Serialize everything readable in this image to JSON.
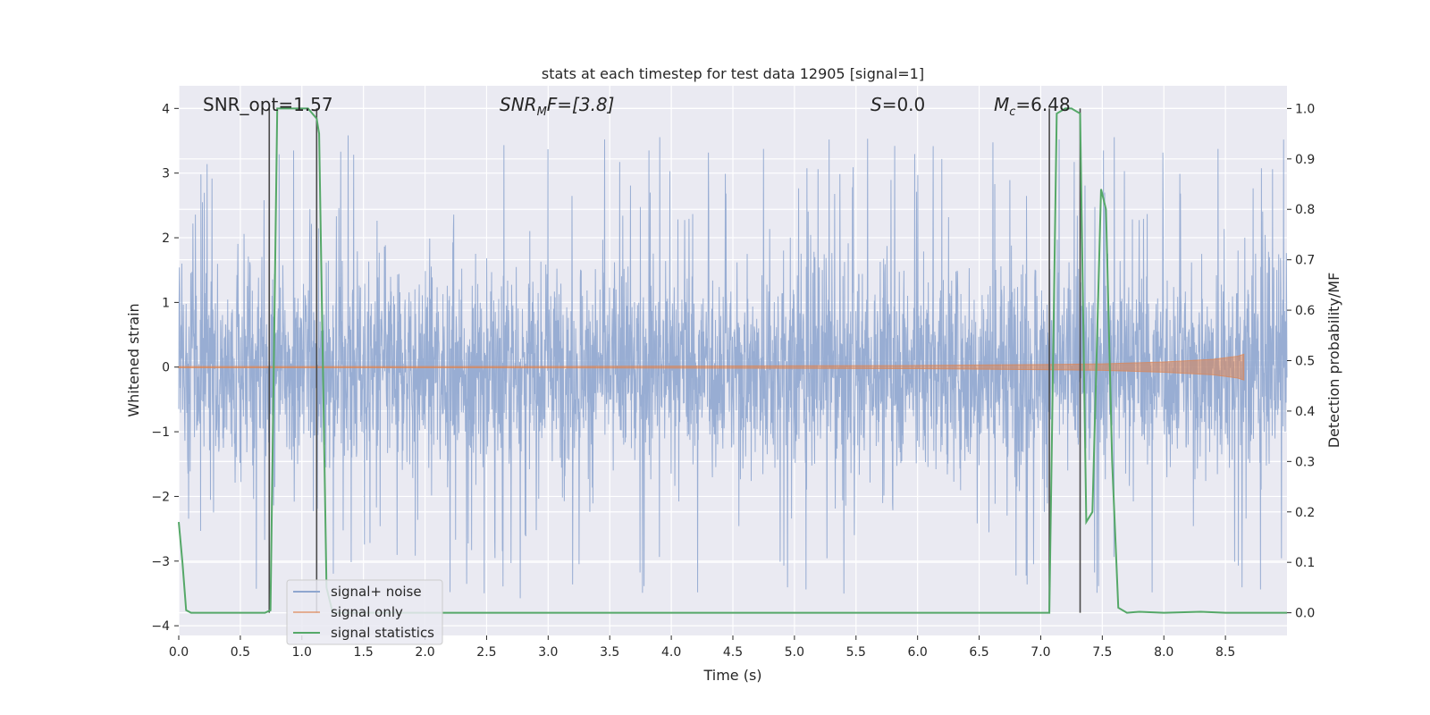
{
  "chart_data": {
    "type": "line",
    "title": "stats at each timestep for test data 12905 [signal=1]",
    "xlabel": "Time (s)",
    "ylabel_left": "Whitened strain",
    "ylabel_right": "Detection probability/MF",
    "xlim": [
      0.0,
      9.0
    ],
    "ylim_left": [
      -4.15,
      4.35
    ],
    "ylim_right": [
      -0.045,
      1.045
    ],
    "x_ticks": [
      "0.0",
      "0.5",
      "1.0",
      "1.5",
      "2.0",
      "2.5",
      "3.0",
      "3.5",
      "4.0",
      "4.5",
      "5.0",
      "5.5",
      "6.0",
      "6.5",
      "7.0",
      "7.5",
      "8.0",
      "8.5"
    ],
    "y_ticks_left": [
      "4",
      "3",
      "2",
      "1",
      "0",
      "−1",
      "−2",
      "−3",
      "−4"
    ],
    "y_ticks_right": [
      "1.0",
      "0.9",
      "0.8",
      "0.7",
      "0.6",
      "0.5",
      "0.4",
      "0.3",
      "0.2",
      "0.1",
      "0.0"
    ],
    "grid": true,
    "annotations": {
      "snr_opt": "SNR_opt=1.57",
      "snr_mf_main": "SNR",
      "snr_mf_sub": "M",
      "snr_mf_rest": "F=[3.8]",
      "s_main": "S",
      "s_rest": "=0.0",
      "mc_main": "M",
      "mc_sub": "c",
      "mc_rest": "=6.48"
    },
    "legend": {
      "placement": "lower-left",
      "entries": [
        "signal+ noise",
        "signal only",
        "signal statistics"
      ]
    },
    "colors": {
      "noise": "#8fa6cf",
      "signal": "#dd8452",
      "stats": "#55a868",
      "vlines": "#4a4a4a",
      "plot_bg": "#eaeaf2",
      "grid": "#ffffff"
    },
    "series": [
      {
        "name": "signal+ noise",
        "axis": "left",
        "envelope": "noise band approximately within -1.5 to +1.7 with spikes up to about ±3.7"
      },
      {
        "name": "signal only",
        "axis": "left",
        "x": [
          0.0,
          1.0,
          2.0,
          3.0,
          4.0,
          5.0,
          6.0,
          7.0,
          7.5,
          8.0,
          8.4,
          8.6,
          8.65
        ],
        "amplitude": [
          0.01,
          0.01,
          0.01,
          0.012,
          0.015,
          0.02,
          0.025,
          0.04,
          0.05,
          0.08,
          0.12,
          0.17,
          0.2
        ]
      },
      {
        "name": "signal statistics",
        "axis": "right",
        "x": [
          0.0,
          0.03,
          0.06,
          0.1,
          0.2,
          0.5,
          0.7,
          0.745,
          0.8,
          0.85,
          1.0,
          1.05,
          1.12,
          1.14,
          1.2,
          1.25,
          1.5,
          2.0,
          3.0,
          4.0,
          5.0,
          6.0,
          7.0,
          7.07,
          7.13,
          7.2,
          7.25,
          7.32,
          7.37,
          7.42,
          7.49,
          7.53,
          7.58,
          7.63,
          7.7,
          7.8,
          8.0,
          8.3,
          8.5,
          9.0
        ],
        "values": [
          0.18,
          0.1,
          0.005,
          0.0,
          0.0,
          0.0,
          0.0,
          0.005,
          1.0,
          1.0,
          1.0,
          1.0,
          0.98,
          0.95,
          0.05,
          0.0,
          0.0,
          0.0,
          0.0,
          0.0,
          0.0,
          0.0,
          0.0,
          0.0,
          0.99,
          1.0,
          1.0,
          0.99,
          0.18,
          0.2,
          0.84,
          0.8,
          0.3,
          0.01,
          0.0,
          0.002,
          0.0,
          0.002,
          0.0,
          0.0
        ]
      }
    ],
    "vertical_lines_x": [
      0.735,
      1.12,
      7.07,
      7.32
    ]
  }
}
